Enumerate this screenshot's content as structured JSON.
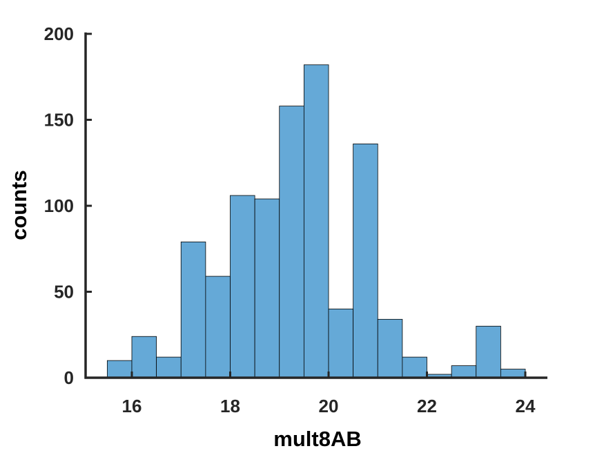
{
  "chart_data": {
    "type": "bar",
    "title": "",
    "xlabel": "mult8AB",
    "ylabel": "counts",
    "xlim": [
      15.5,
      24
    ],
    "ylim": [
      0,
      200
    ],
    "bin_width": 0.5,
    "bins": [
      {
        "start": 15.5,
        "end": 16.0,
        "count": 10
      },
      {
        "start": 16.0,
        "end": 16.5,
        "count": 24
      },
      {
        "start": 16.5,
        "end": 17.0,
        "count": 12
      },
      {
        "start": 17.0,
        "end": 17.5,
        "count": 79
      },
      {
        "start": 17.5,
        "end": 18.0,
        "count": 59
      },
      {
        "start": 18.0,
        "end": 18.5,
        "count": 106
      },
      {
        "start": 18.5,
        "end": 19.0,
        "count": 104
      },
      {
        "start": 19.0,
        "end": 19.5,
        "count": 158
      },
      {
        "start": 19.5,
        "end": 20.0,
        "count": 182
      },
      {
        "start": 20.0,
        "end": 20.5,
        "count": 40
      },
      {
        "start": 20.5,
        "end": 21.0,
        "count": 136
      },
      {
        "start": 21.0,
        "end": 21.5,
        "count": 34
      },
      {
        "start": 21.5,
        "end": 22.0,
        "count": 12
      },
      {
        "start": 22.0,
        "end": 22.5,
        "count": 2
      },
      {
        "start": 22.5,
        "end": 23.0,
        "count": 7
      },
      {
        "start": 23.0,
        "end": 23.5,
        "count": 30
      },
      {
        "start": 23.5,
        "end": 24.0,
        "count": 5
      }
    ],
    "x_ticks": [
      "16",
      "18",
      "20",
      "22",
      "24"
    ],
    "y_ticks": [
      "0",
      "50",
      "100",
      "150",
      "200"
    ],
    "bar_color": "#65a9d7",
    "axis_color": "#262626",
    "grid": false
  }
}
